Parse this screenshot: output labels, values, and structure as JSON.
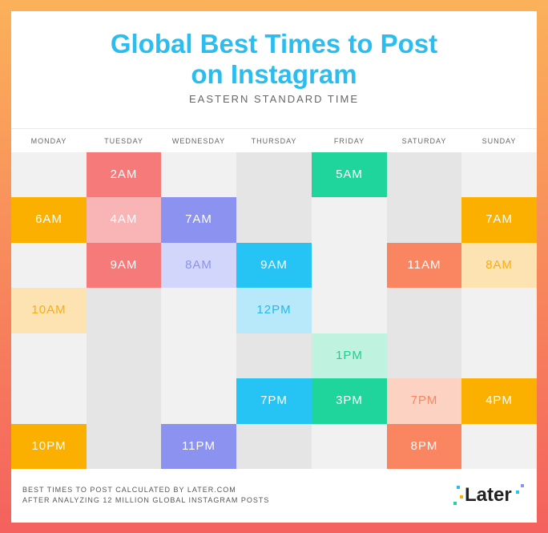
{
  "header": {
    "title": [
      "Global Best Times to Post",
      "on Instagram"
    ],
    "subtitle": "EASTERN STANDARD TIME"
  },
  "columns": [
    {
      "day": "MONDAY",
      "times": [
        null,
        "6AM",
        null,
        "10AM",
        null,
        null,
        "10PM"
      ],
      "fills": [
        null,
        "#fbb000",
        null,
        "#fde3b2",
        null,
        null,
        "#fbb000"
      ],
      "text_colors": [
        null,
        "#ffffff",
        null,
        "#f9ad12",
        null,
        null,
        "#ffffff"
      ]
    },
    {
      "day": "TUESDAY",
      "times": [
        "2AM",
        "4AM",
        "9AM",
        null,
        null,
        null,
        null
      ],
      "fills": [
        "#f77a7b",
        "#f9b5b5",
        "#f77a7b",
        null,
        null,
        null,
        null
      ],
      "text_colors": [
        "#ffffff",
        "#ffffff",
        "#ffffff",
        null,
        null,
        null,
        null
      ]
    },
    {
      "day": "WEDNESDAY",
      "times": [
        null,
        "7AM",
        "8AM",
        null,
        null,
        null,
        "11PM"
      ],
      "fills": [
        null,
        "#8b92ef",
        "#d2d6fa",
        null,
        null,
        null,
        "#8b92ef"
      ],
      "text_colors": [
        null,
        "#ffffff",
        "#8b92ef",
        null,
        null,
        null,
        "#ffffff"
      ]
    },
    {
      "day": "THURSDAY",
      "times": [
        null,
        null,
        "9AM",
        "12PM",
        null,
        "7PM",
        null
      ],
      "fills": [
        null,
        null,
        "#26c3f5",
        "#b8e9fb",
        null,
        "#26c3f5",
        null
      ],
      "text_colors": [
        null,
        null,
        "#ffffff",
        "#26b7ef",
        null,
        "#ffffff",
        null
      ]
    },
    {
      "day": "FRIDAY",
      "times": [
        "5AM",
        null,
        null,
        null,
        "1PM",
        "3PM",
        null
      ],
      "fills": [
        "#1fd59b",
        null,
        null,
        null,
        "#bff2df",
        "#1fd59b",
        null
      ],
      "text_colors": [
        "#ffffff",
        null,
        null,
        null,
        "#1fcf95",
        "#ffffff",
        null
      ]
    },
    {
      "day": "SATURDAY",
      "times": [
        null,
        null,
        "11AM",
        null,
        null,
        "7PM",
        "8PM"
      ],
      "fills": [
        null,
        null,
        "#f98660",
        null,
        null,
        "#fcd3c3",
        "#f98660"
      ],
      "text_colors": [
        null,
        null,
        "#ffffff",
        null,
        null,
        "#f98660",
        "#ffffff"
      ]
    },
    {
      "day": "SUNDAY",
      "times": [
        null,
        "7AM",
        "8AM",
        null,
        null,
        "4PM",
        null
      ],
      "fills": [
        null,
        "#fbb000",
        "#fde3b2",
        null,
        null,
        "#fbb000",
        null
      ],
      "text_colors": [
        null,
        "#ffffff",
        "#f9ad12",
        null,
        null,
        "#ffffff",
        null
      ]
    }
  ],
  "footer": {
    "note": [
      "BEST TIMES TO POST  CALCULATED BY LATER.COM",
      "AFTER ANALYZING 12 MILLION GLOBAL INSTAGRAM POSTS"
    ],
    "logo": "Later"
  }
}
